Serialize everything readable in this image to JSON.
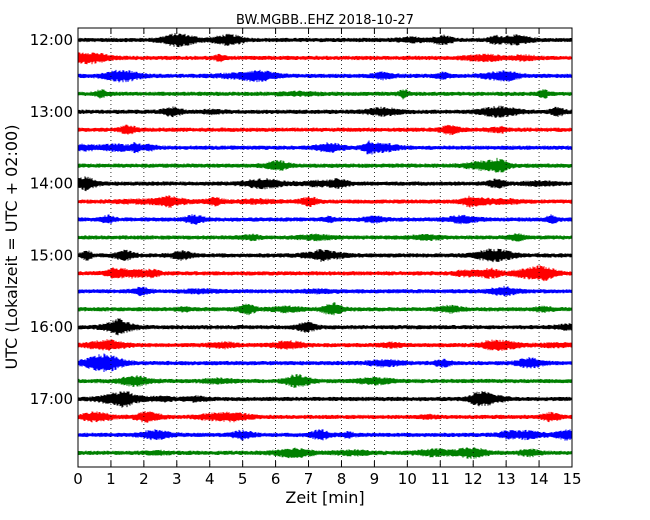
{
  "chart_data": {
    "type": "line",
    "title": "BW.MGBB..EHZ 2018-10-27",
    "xlabel": "Zeit  [min]",
    "ylabel": "UTC (Lokalzeit = UTC + 02:00)",
    "xlim": [
      0,
      15
    ],
    "x_ticks": [
      "0",
      "1",
      "2",
      "3",
      "4",
      "5",
      "6",
      "7",
      "8",
      "9",
      "10",
      "11",
      "12",
      "13",
      "14",
      "15"
    ],
    "y_tick_labels": [
      "12:00",
      "13:00",
      "14:00",
      "15:00",
      "16:00",
      "17:00"
    ],
    "grid": "vertical dotted",
    "trace_interval_minutes": 15,
    "trace_start": "12:00",
    "trace_count": 24,
    "trace_colors": [
      "#000000",
      "#ff0000",
      "#0000ff",
      "#008000"
    ]
  }
}
